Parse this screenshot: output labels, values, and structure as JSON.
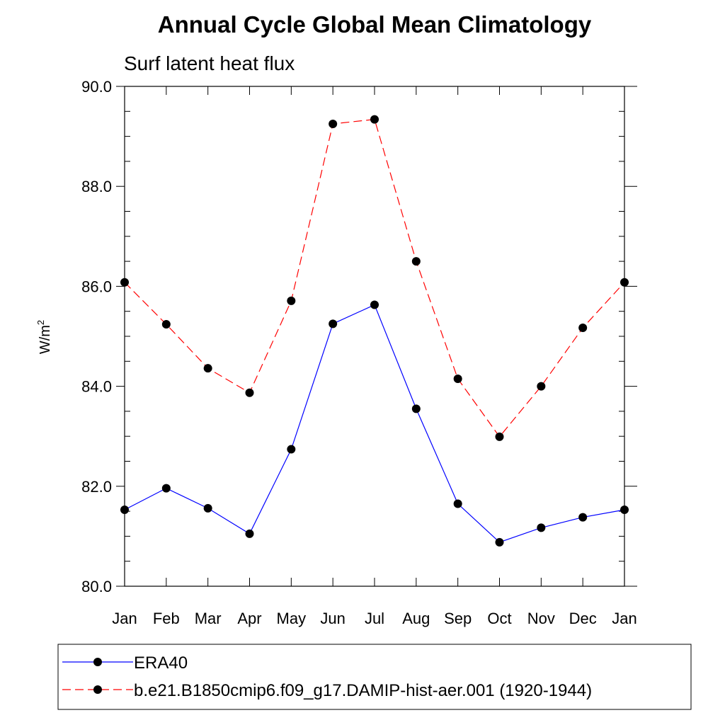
{
  "chart_data": {
    "type": "line",
    "title": "Annual Cycle Global Mean Climatology",
    "subtitle": "Surf latent heat flux",
    "ylabel": "W/m",
    "ylabel_sup": "2",
    "xlabel": "",
    "categories": [
      "Jan",
      "Feb",
      "Mar",
      "Apr",
      "May",
      "Jun",
      "Jul",
      "Aug",
      "Sep",
      "Oct",
      "Nov",
      "Dec",
      "Jan"
    ],
    "ylim": [
      80.0,
      90.0
    ],
    "yticks": [
      "80.0",
      "82.0",
      "84.0",
      "86.0",
      "88.0",
      "90.0"
    ],
    "grid": false,
    "legend_position": "bottom",
    "series": [
      {
        "name": "ERA40",
        "color": "#0000ff",
        "dash": "solid",
        "marker": "filled-circle",
        "values": [
          81.53,
          81.96,
          81.56,
          81.05,
          82.74,
          85.25,
          85.63,
          83.55,
          81.65,
          80.88,
          81.17,
          81.38,
          81.53
        ]
      },
      {
        "name": "b.e21.B1850cmip6.f09_g17.DAMIP-hist-aer.001 (1920-1944)",
        "color": "#ff0000",
        "dash": "dashed",
        "marker": "filled-circle",
        "values": [
          86.08,
          85.24,
          84.36,
          83.87,
          85.71,
          89.25,
          89.34,
          86.5,
          84.15,
          82.99,
          84.0,
          85.17,
          86.08
        ]
      }
    ]
  }
}
